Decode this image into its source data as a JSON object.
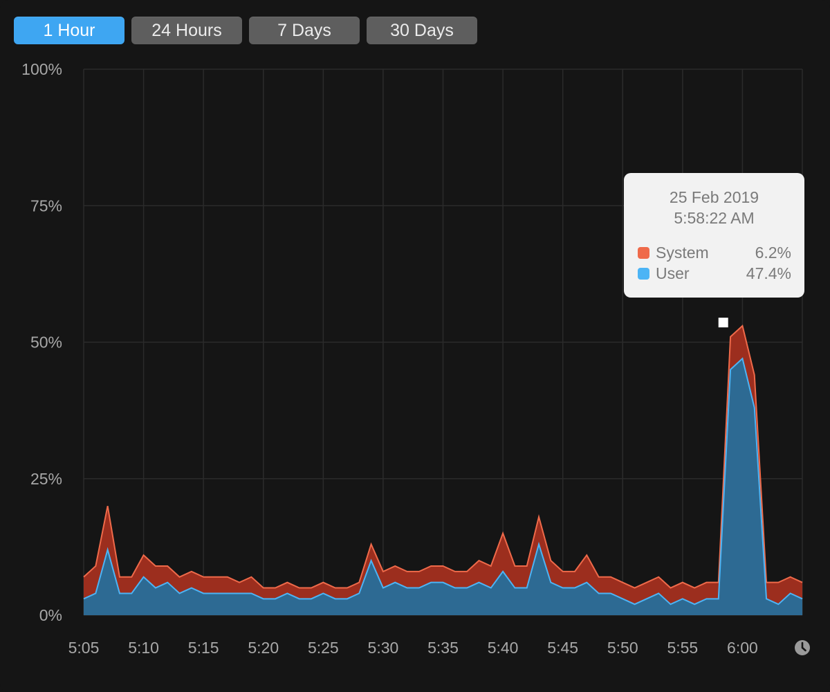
{
  "range_tabs": [
    {
      "label": "1 Hour",
      "active": true
    },
    {
      "label": "24 Hours",
      "active": false
    },
    {
      "label": "7 Days",
      "active": false
    },
    {
      "label": "30 Days",
      "active": false
    }
  ],
  "tooltip": {
    "date": "25 Feb 2019",
    "time": "5:58:22 AM",
    "rows": [
      {
        "name": "System",
        "value": "6.2%",
        "color": "#ef6a4a"
      },
      {
        "name": "User",
        "value": "47.4%",
        "color": "#4cb4f5"
      }
    ]
  },
  "icons": {
    "time_icon": "clock-icon"
  },
  "chart_data": {
    "type": "area",
    "stacked": true,
    "ylim": [
      0,
      100
    ],
    "yticks": [
      "0%",
      "25%",
      "50%",
      "75%",
      "100%"
    ],
    "xticks": [
      "5:05",
      "5:10",
      "5:15",
      "5:20",
      "5:25",
      "5:30",
      "5:35",
      "5:40",
      "5:45",
      "5:50",
      "5:55",
      "6:00"
    ],
    "x_minutes": [
      0,
      1,
      2,
      3,
      4,
      5,
      6,
      7,
      8,
      9,
      10,
      11,
      12,
      13,
      14,
      15,
      16,
      17,
      18,
      19,
      20,
      21,
      22,
      23,
      24,
      25,
      26,
      27,
      28,
      29,
      30,
      31,
      32,
      33,
      34,
      35,
      36,
      37,
      38,
      39,
      40,
      41,
      42,
      43,
      44,
      45,
      46,
      47,
      48,
      49,
      50,
      51,
      52,
      53,
      54,
      55,
      56,
      57,
      58,
      59,
      60
    ],
    "series": [
      {
        "name": "User",
        "color": "#4cb4f5",
        "values": [
          3,
          4,
          12,
          4,
          4,
          7,
          5,
          6,
          4,
          5,
          4,
          4,
          4,
          4,
          4,
          3,
          3,
          4,
          3,
          3,
          4,
          3,
          3,
          4,
          10,
          5,
          6,
          5,
          5,
          6,
          6,
          5,
          5,
          6,
          5,
          8,
          5,
          5,
          13,
          6,
          5,
          5,
          6,
          4,
          4,
          3,
          2,
          3,
          4,
          2,
          3,
          2,
          3,
          3,
          45,
          47,
          38,
          3,
          2,
          4,
          3
        ]
      },
      {
        "name": "System",
        "color": "#ef6a4a",
        "values": [
          4,
          5,
          8,
          3,
          3,
          4,
          4,
          3,
          3,
          3,
          3,
          3,
          3,
          2,
          3,
          2,
          2,
          2,
          2,
          2,
          2,
          2,
          2,
          2,
          3,
          3,
          3,
          3,
          3,
          3,
          3,
          3,
          3,
          4,
          4,
          7,
          4,
          4,
          5,
          4,
          3,
          3,
          5,
          3,
          3,
          3,
          3,
          3,
          3,
          3,
          3,
          3,
          3,
          3,
          6,
          6,
          6,
          3,
          4,
          3,
          3
        ]
      }
    ],
    "marker": {
      "x_minutes": 53.4,
      "y": 53.6
    },
    "grid": true
  }
}
